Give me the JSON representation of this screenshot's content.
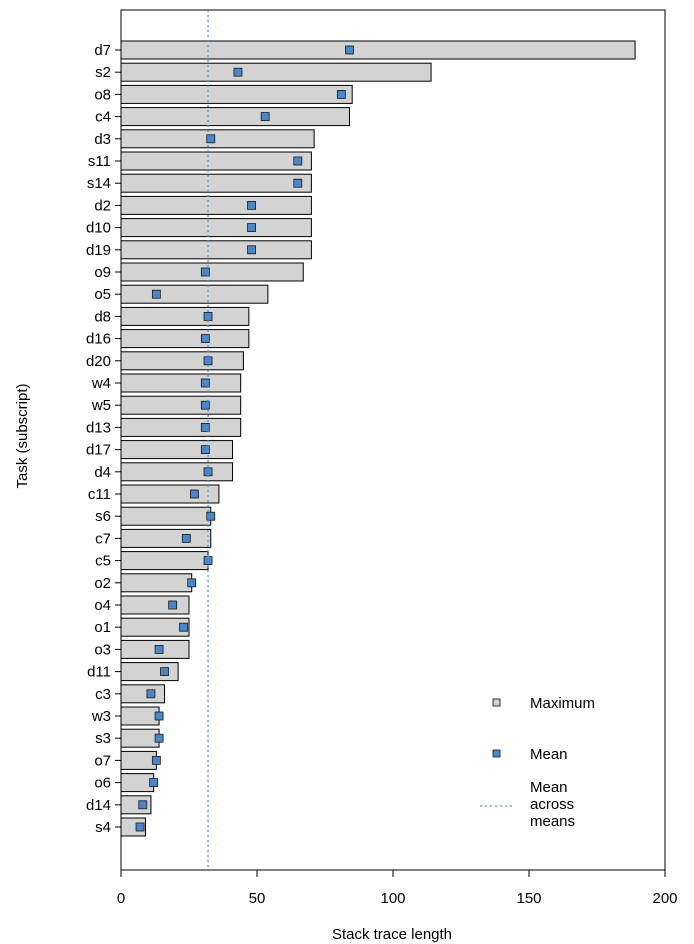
{
  "chart_data": {
    "type": "bar",
    "orientation": "horizontal",
    "xlabel": "Stack trace length",
    "ylabel": "Task (subscript)",
    "xlim": [
      0,
      200
    ],
    "xticks": [
      0,
      50,
      100,
      150,
      200
    ],
    "grid": false,
    "legend_position": "bottom-right",
    "categories": [
      "d7",
      "s2",
      "o8",
      "c4",
      "d3",
      "s11",
      "s14",
      "d2",
      "d10",
      "d19",
      "o9",
      "o5",
      "d8",
      "d16",
      "d20",
      "w4",
      "w5",
      "d13",
      "d17",
      "d4",
      "c11",
      "s6",
      "c7",
      "c5",
      "o2",
      "o4",
      "o1",
      "o3",
      "d11",
      "c3",
      "w3",
      "s3",
      "o7",
      "o6",
      "d14",
      "s4"
    ],
    "series": [
      {
        "name": "Maximum",
        "mark": "bar",
        "color": "#d3d3d3",
        "values": [
          189,
          114,
          85,
          84,
          71,
          70,
          70,
          70,
          70,
          70,
          67,
          54,
          47,
          47,
          45,
          44,
          44,
          44,
          41,
          41,
          36,
          33,
          33,
          32,
          26,
          25,
          25,
          25,
          21,
          16,
          14,
          14,
          13,
          12,
          11,
          9
        ]
      },
      {
        "name": "Mean",
        "mark": "square",
        "color": "#4a86c8",
        "values": [
          84,
          43,
          81,
          53,
          33,
          65,
          65,
          48,
          48,
          48,
          31,
          13,
          32,
          31,
          32,
          31,
          31,
          31,
          31,
          32,
          27,
          33,
          24,
          32,
          26,
          19,
          23,
          14,
          16,
          11,
          14,
          14,
          13,
          12,
          8,
          7
        ]
      }
    ],
    "reference_line": {
      "name": "Mean across means",
      "value": 32,
      "color": "#4a90d9",
      "style": "dotted"
    },
    "legend": [
      {
        "label": "Maximum",
        "swatch": "bar"
      },
      {
        "label": "Mean",
        "swatch": "square"
      },
      {
        "label_lines": [
          "Mean",
          "across",
          "means"
        ],
        "swatch": "dotted-line"
      }
    ]
  }
}
